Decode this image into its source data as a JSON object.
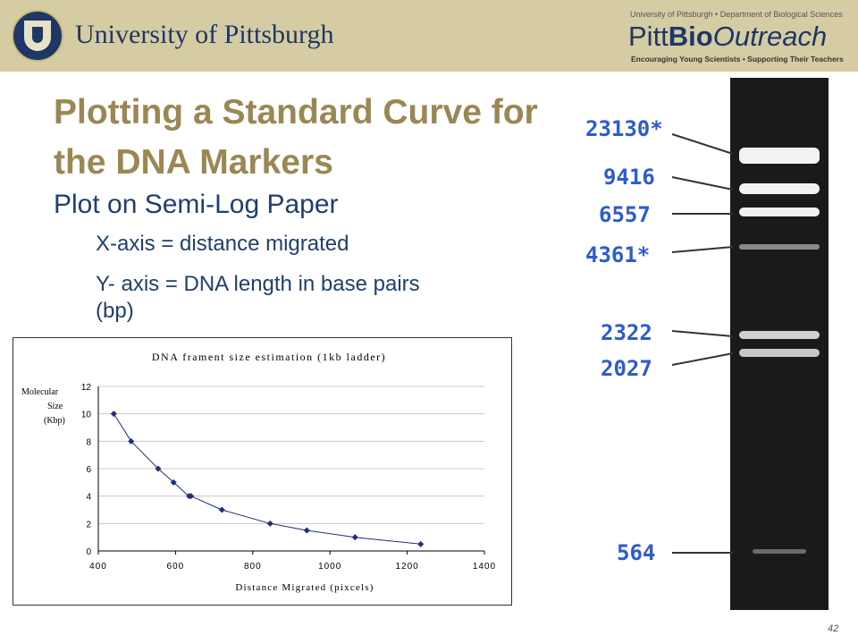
{
  "header": {
    "university": "University of Pittsburgh",
    "outreach_top": "University of Pittsburgh  •  Department of Biological Sciences",
    "brand_pitt": "Pitt",
    "brand_bio": "Bio",
    "brand_outreach": "Outreach",
    "tagline": "Encouraging Young Scientists  •  Supporting Their Teachers"
  },
  "slide": {
    "title": "Plotting a Standard Curve for the DNA Markers",
    "subtitle": "Plot on Semi-Log Paper",
    "bullets": [
      "X-axis = distance migrated",
      "Y- axis = DNA length in base pairs",
      "(bp)"
    ],
    "page_number": "42"
  },
  "gel": {
    "markers": [
      "23130*",
      "9416",
      "6557",
      "4361*",
      "2322",
      "2027",
      "564"
    ]
  },
  "chart_data": {
    "type": "line",
    "title": "DNA frament size estimation (1kb ladder)",
    "xlabel": "Distance Migrated (pixcels)",
    "ylabel": "Molecular Size (Kbp)",
    "xlim": [
      400,
      1400
    ],
    "ylim": [
      0,
      12
    ],
    "x_ticks": [
      "400",
      "600",
      "800",
      "1000",
      "1200",
      "1400"
    ],
    "y_ticks": [
      "0",
      "2",
      "4",
      "6",
      "8",
      "10",
      "12"
    ],
    "grid": "horizontal",
    "markers": "diamond",
    "color": "#1f2f7a",
    "series": [
      {
        "x": [
          440,
          485,
          555,
          595,
          635,
          640,
          720,
          845,
          940,
          1065,
          1235
        ],
        "y": [
          10,
          8,
          6,
          5,
          4,
          4,
          3,
          2,
          1.5,
          1,
          0.5
        ]
      }
    ]
  }
}
